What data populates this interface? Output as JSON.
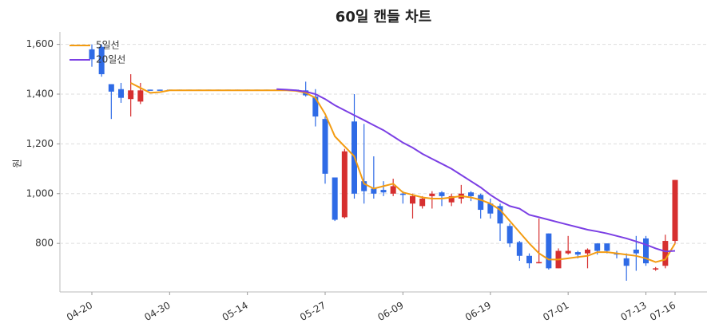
{
  "chart_data": {
    "type": "candlestick",
    "title": "60일 캔들 차트",
    "ylabel": "원",
    "categories": [
      "04-20",
      null,
      null,
      null,
      null,
      null,
      null,
      null,
      "04-30",
      null,
      null,
      null,
      null,
      null,
      null,
      null,
      "05-14",
      null,
      null,
      null,
      null,
      null,
      null,
      null,
      "05-27",
      null,
      null,
      null,
      null,
      null,
      null,
      null,
      "06-09",
      null,
      null,
      null,
      null,
      null,
      null,
      null,
      null,
      "06-19",
      null,
      null,
      null,
      null,
      null,
      null,
      null,
      "07-01",
      null,
      null,
      null,
      null,
      null,
      null,
      null,
      "07-13",
      null,
      null,
      "07-16"
    ],
    "open": [
      1580,
      1590,
      1440,
      1420,
      1380,
      1370,
      1418,
      1418,
      1418,
      1418,
      1418,
      1418,
      1418,
      1418,
      1418,
      1418,
      1418,
      1418,
      1418,
      1418,
      1418,
      1418,
      1415,
      1390,
      1300,
      1065,
      905,
      1290,
      1050,
      1020,
      1015,
      1000,
      1000,
      960,
      950,
      990,
      1005,
      965,
      980,
      1005,
      995,
      960,
      950,
      870,
      805,
      750,
      720,
      840,
      700,
      760,
      765,
      760,
      800,
      800,
      760,
      740,
      775,
      820,
      695,
      710,
      810
    ],
    "high": [
      1600,
      1600,
      1440,
      1445,
      1480,
      1445,
      1418,
      1418,
      1418,
      1418,
      1418,
      1418,
      1418,
      1418,
      1418,
      1418,
      1418,
      1418,
      1418,
      1418,
      1418,
      1418,
      1450,
      1420,
      1310,
      1065,
      1180,
      1400,
      1280,
      1150,
      1050,
      1060,
      1010,
      1000,
      990,
      1010,
      1010,
      1000,
      1035,
      1010,
      1000,
      980,
      960,
      880,
      810,
      760,
      900,
      840,
      780,
      830,
      770,
      780,
      800,
      800,
      770,
      760,
      830,
      830,
      705,
      835,
      1055
    ],
    "low": [
      1510,
      1470,
      1300,
      1365,
      1310,
      1360,
      1414,
      1414,
      1414,
      1414,
      1414,
      1414,
      1414,
      1414,
      1414,
      1414,
      1414,
      1414,
      1414,
      1414,
      1414,
      1414,
      1390,
      1270,
      1040,
      890,
      900,
      980,
      960,
      980,
      990,
      990,
      960,
      900,
      940,
      940,
      950,
      950,
      960,
      970,
      900,
      900,
      810,
      785,
      730,
      700,
      720,
      695,
      700,
      755,
      740,
      700,
      755,
      760,
      740,
      650,
      690,
      710,
      690,
      700,
      800
    ],
    "close": [
      1540,
      1480,
      1410,
      1385,
      1415,
      1415,
      1414,
      1414,
      1414,
      1414,
      1414,
      1414,
      1414,
      1414,
      1414,
      1414,
      1414,
      1414,
      1414,
      1414,
      1414,
      1414,
      1395,
      1310,
      1080,
      895,
      1170,
      1000,
      1010,
      1000,
      1005,
      1030,
      995,
      990,
      980,
      1000,
      990,
      990,
      1000,
      990,
      935,
      920,
      880,
      800,
      750,
      720,
      725,
      700,
      770,
      770,
      755,
      775,
      770,
      770,
      755,
      710,
      760,
      720,
      700,
      810,
      1055
    ],
    "up_color": "#d62f2f",
    "down_color": "#2f6be6",
    "lines": [
      {
        "name": "5일선",
        "color": "#f39c12",
        "values": [
          null,
          null,
          null,
          null,
          1445,
          1425,
          1405,
          1408,
          1415,
          1415,
          1415,
          1415,
          1415,
          1415,
          1415,
          1415,
          1415,
          1415,
          1415,
          1415,
          1415,
          1413,
          1405,
          1385,
          1320,
          1230,
          1190,
          1150,
          1040,
          1020,
          1030,
          1040,
          1005,
          995,
          985,
          980,
          980,
          985,
          990,
          985,
          975,
          960,
          935,
          890,
          845,
          800,
          760,
          735,
          735,
          740,
          745,
          750,
          765,
          765,
          760,
          755,
          750,
          740,
          725,
          735,
          800
        ]
      },
      {
        "name": "20일선",
        "color": "#7b3fe4",
        "values": [
          null,
          null,
          null,
          null,
          null,
          null,
          null,
          null,
          null,
          null,
          null,
          null,
          null,
          null,
          null,
          null,
          null,
          null,
          null,
          1420,
          1418,
          1415,
          1410,
          1400,
          1380,
          1355,
          1335,
          1315,
          1295,
          1275,
          1255,
          1230,
          1205,
          1185,
          1160,
          1140,
          1120,
          1100,
          1075,
          1050,
          1025,
          995,
          970,
          950,
          940,
          915,
          905,
          895,
          885,
          875,
          865,
          855,
          848,
          840,
          830,
          820,
          808,
          795,
          780,
          768,
          770
        ]
      }
    ],
    "ylim": [
      605,
      1650
    ],
    "yticks": [
      {
        "value": 800,
        "label": "800"
      },
      {
        "value": 1000,
        "label": "1,000"
      },
      {
        "value": 1200,
        "label": "1,200"
      },
      {
        "value": 1400,
        "label": "1,400"
      },
      {
        "value": 1600,
        "label": "1,600"
      }
    ],
    "grid": true
  }
}
